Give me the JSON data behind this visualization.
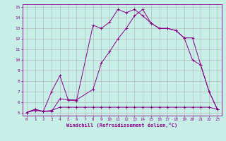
{
  "xlabel": "Windchill (Refroidissement éolien,°C)",
  "background_color": "#c8eee8",
  "grid_color": "#b0b0b0",
  "line_color": "#880088",
  "xlim": [
    -0.5,
    23.5
  ],
  "ylim": [
    4.7,
    15.3
  ],
  "xticks": [
    0,
    1,
    2,
    3,
    4,
    5,
    6,
    7,
    8,
    9,
    10,
    11,
    12,
    13,
    14,
    15,
    16,
    17,
    18,
    19,
    20,
    21,
    22,
    23
  ],
  "yticks": [
    5,
    6,
    7,
    8,
    9,
    10,
    11,
    12,
    13,
    14,
    15
  ],
  "line1_x": [
    0,
    1,
    2,
    3,
    4,
    5,
    6,
    8,
    9,
    10,
    11,
    12,
    13,
    14,
    15,
    16,
    17,
    18,
    19,
    20,
    21,
    22,
    23
  ],
  "line1_y": [
    5.0,
    5.3,
    5.1,
    5.1,
    6.3,
    6.2,
    6.1,
    13.3,
    13.0,
    13.6,
    14.8,
    14.5,
    14.8,
    14.2,
    13.5,
    13.0,
    13.0,
    12.8,
    12.1,
    10.0,
    9.5,
    7.0,
    5.3
  ],
  "line2_x": [
    0,
    1,
    2,
    3,
    4,
    5,
    6,
    8,
    9,
    10,
    11,
    12,
    13,
    14,
    15,
    16,
    17,
    18,
    19,
    20,
    21,
    22,
    23
  ],
  "line2_y": [
    5.0,
    5.2,
    5.1,
    7.0,
    8.5,
    6.2,
    6.2,
    7.2,
    9.7,
    10.8,
    12.0,
    13.0,
    14.2,
    14.8,
    13.5,
    13.0,
    13.0,
    12.8,
    12.1,
    12.1,
    9.5,
    7.0,
    5.3
  ],
  "line3_x": [
    0,
    1,
    2,
    3,
    4,
    5,
    6,
    7,
    8,
    9,
    10,
    11,
    12,
    13,
    14,
    15,
    16,
    17,
    18,
    19,
    20,
    21,
    22,
    23
  ],
  "line3_y": [
    5.0,
    5.3,
    5.1,
    5.2,
    5.5,
    5.5,
    5.5,
    5.5,
    5.5,
    5.5,
    5.5,
    5.5,
    5.5,
    5.5,
    5.5,
    5.5,
    5.5,
    5.5,
    5.5,
    5.5,
    5.5,
    5.5,
    5.5,
    5.3
  ]
}
